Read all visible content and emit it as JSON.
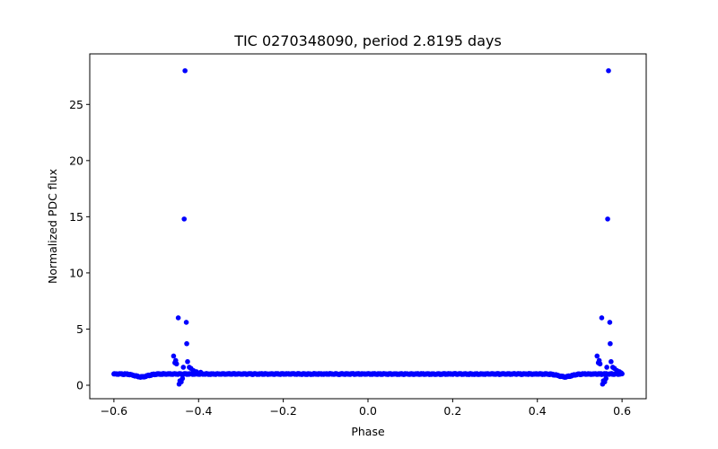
{
  "chart_data": {
    "type": "scatter",
    "title": "TIC 0270348090, period 2.8195 days",
    "xlabel": "Phase",
    "ylabel": "Normalized PDC flux",
    "xlim": [
      -0.657,
      0.657
    ],
    "ylim": [
      -1.2,
      29.5
    ],
    "xticks": [
      -0.6,
      -0.4,
      -0.2,
      0.0,
      0.2,
      0.4,
      0.6
    ],
    "xtick_labels": [
      "−0.6",
      "−0.4",
      "−0.2",
      "0.0",
      "0.2",
      "0.4",
      "0.6"
    ],
    "yticks": [
      0,
      5,
      10,
      15,
      20,
      25
    ],
    "ytick_labels": [
      "0",
      "5",
      "10",
      "15",
      "20",
      "25"
    ],
    "grid": false,
    "legend": null,
    "marker_color": "#0000ff",
    "series": [
      {
        "name": "flux",
        "baseline": {
          "x_range": [
            -0.6,
            0.6
          ],
          "value": 1.0,
          "dips": [
            {
              "x": -0.535,
              "depth": 0.25,
              "width": 0.03
            },
            {
              "x": 0.465,
              "depth": 0.25,
              "width": 0.03
            }
          ]
        },
        "points": [
          {
            "x": -0.432,
            "y": 28.0
          },
          {
            "x": -0.434,
            "y": 14.8
          },
          {
            "x": -0.448,
            "y": 6.0
          },
          {
            "x": -0.429,
            "y": 5.6
          },
          {
            "x": -0.428,
            "y": 3.7
          },
          {
            "x": -0.459,
            "y": 2.6
          },
          {
            "x": -0.456,
            "y": 2.0
          },
          {
            "x": -0.452,
            "y": 1.9
          },
          {
            "x": -0.454,
            "y": 2.2
          },
          {
            "x": -0.426,
            "y": 2.1
          },
          {
            "x": -0.436,
            "y": 1.6
          },
          {
            "x": -0.422,
            "y": 1.6
          },
          {
            "x": -0.418,
            "y": 1.5
          },
          {
            "x": -0.412,
            "y": 1.3
          },
          {
            "x": -0.405,
            "y": 1.2
          },
          {
            "x": -0.395,
            "y": 1.15
          },
          {
            "x": -0.444,
            "y": 0.4
          },
          {
            "x": -0.446,
            "y": 0.1
          },
          {
            "x": -0.441,
            "y": 0.3
          },
          {
            "x": -0.438,
            "y": 0.6
          },
          {
            "x": 0.568,
            "y": 28.0
          },
          {
            "x": 0.566,
            "y": 14.8
          },
          {
            "x": 0.552,
            "y": 6.0
          },
          {
            "x": 0.571,
            "y": 5.6
          },
          {
            "x": 0.572,
            "y": 3.7
          },
          {
            "x": 0.541,
            "y": 2.6
          },
          {
            "x": 0.544,
            "y": 2.0
          },
          {
            "x": 0.548,
            "y": 1.9
          },
          {
            "x": 0.546,
            "y": 2.2
          },
          {
            "x": 0.574,
            "y": 2.1
          },
          {
            "x": 0.564,
            "y": 1.6
          },
          {
            "x": 0.578,
            "y": 1.6
          },
          {
            "x": 0.582,
            "y": 1.5
          },
          {
            "x": 0.588,
            "y": 1.3
          },
          {
            "x": 0.594,
            "y": 1.2
          },
          {
            "x": 0.598,
            "y": 1.1
          },
          {
            "x": 0.556,
            "y": 0.4
          },
          {
            "x": 0.554,
            "y": 0.1
          },
          {
            "x": 0.559,
            "y": 0.3
          },
          {
            "x": 0.562,
            "y": 0.6
          }
        ]
      }
    ]
  }
}
